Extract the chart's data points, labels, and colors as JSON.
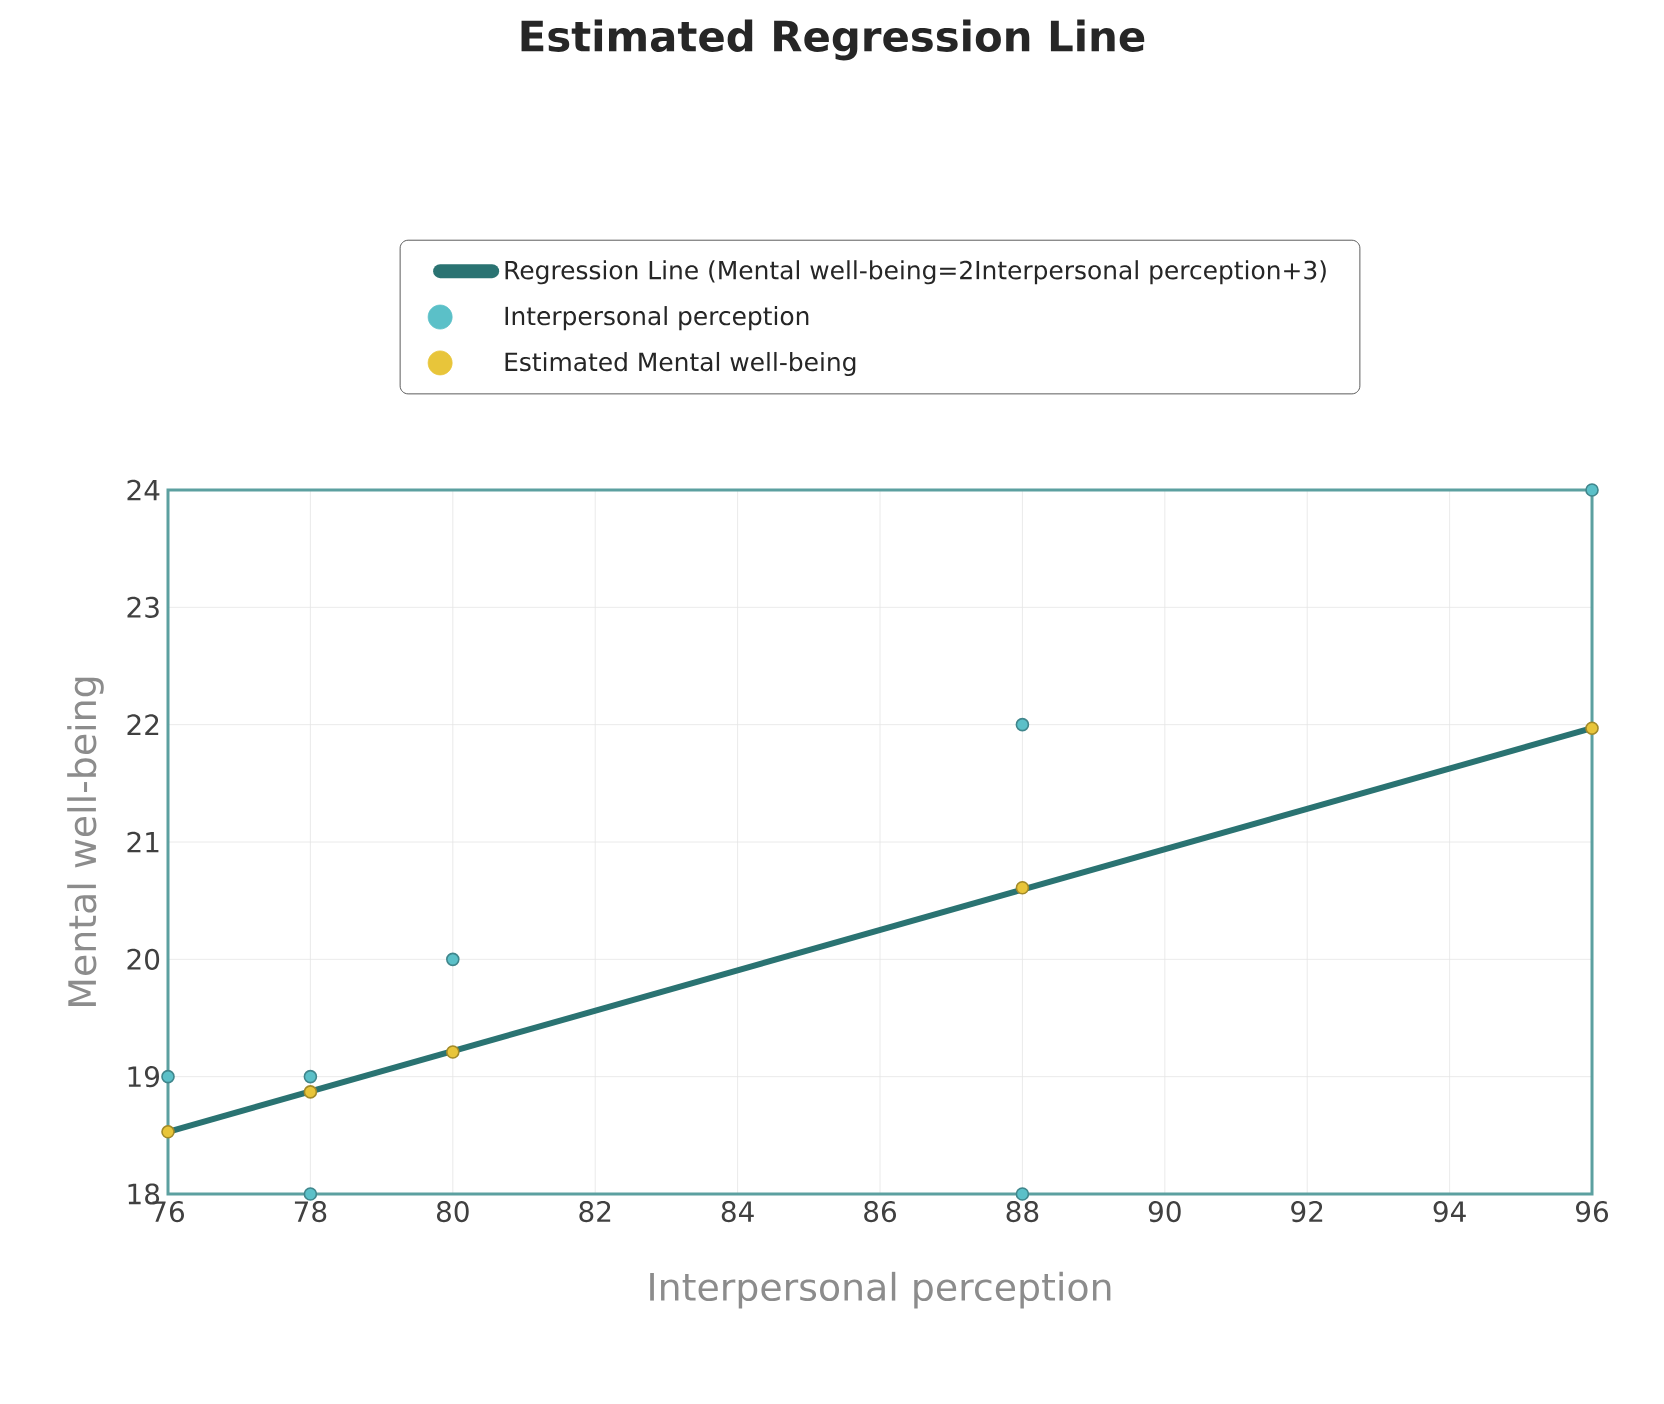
{
  "chart_data": {
    "type": "scatter",
    "title": "Estimated Regression Line",
    "xlabel": "Interpersonal perception",
    "ylabel": "Mental well-being",
    "xlim": [
      76,
      96
    ],
    "ylim": [
      18,
      24
    ],
    "xticks": [
      76,
      78,
      80,
      82,
      84,
      86,
      88,
      90,
      92,
      94,
      96
    ],
    "yticks": [
      18,
      19,
      20,
      21,
      22,
      23,
      24
    ],
    "grid": true,
    "legend": "top",
    "marker": "circle",
    "line_style": "solid",
    "series": [
      {
        "name": "Regression Line (Mental well-being=2Interpersonal perception+3)",
        "type": "line",
        "marker": "none",
        "color": "#2a7372",
        "x": [
          76,
          96
        ],
        "values": [
          18.53,
          21.97
        ]
      },
      {
        "name": "Interpersonal perception",
        "color": "#5bc0c8",
        "x": [
          76,
          78,
          78,
          80,
          88,
          88,
          96
        ],
        "values": [
          19,
          19,
          18,
          20,
          22,
          18,
          24
        ]
      },
      {
        "name": "Estimated Mental well-being",
        "color": "#e8c53a",
        "x": [
          76,
          78,
          80,
          88,
          96
        ],
        "values": [
          18.53,
          18.87,
          19.21,
          20.61,
          21.97
        ]
      }
    ]
  }
}
